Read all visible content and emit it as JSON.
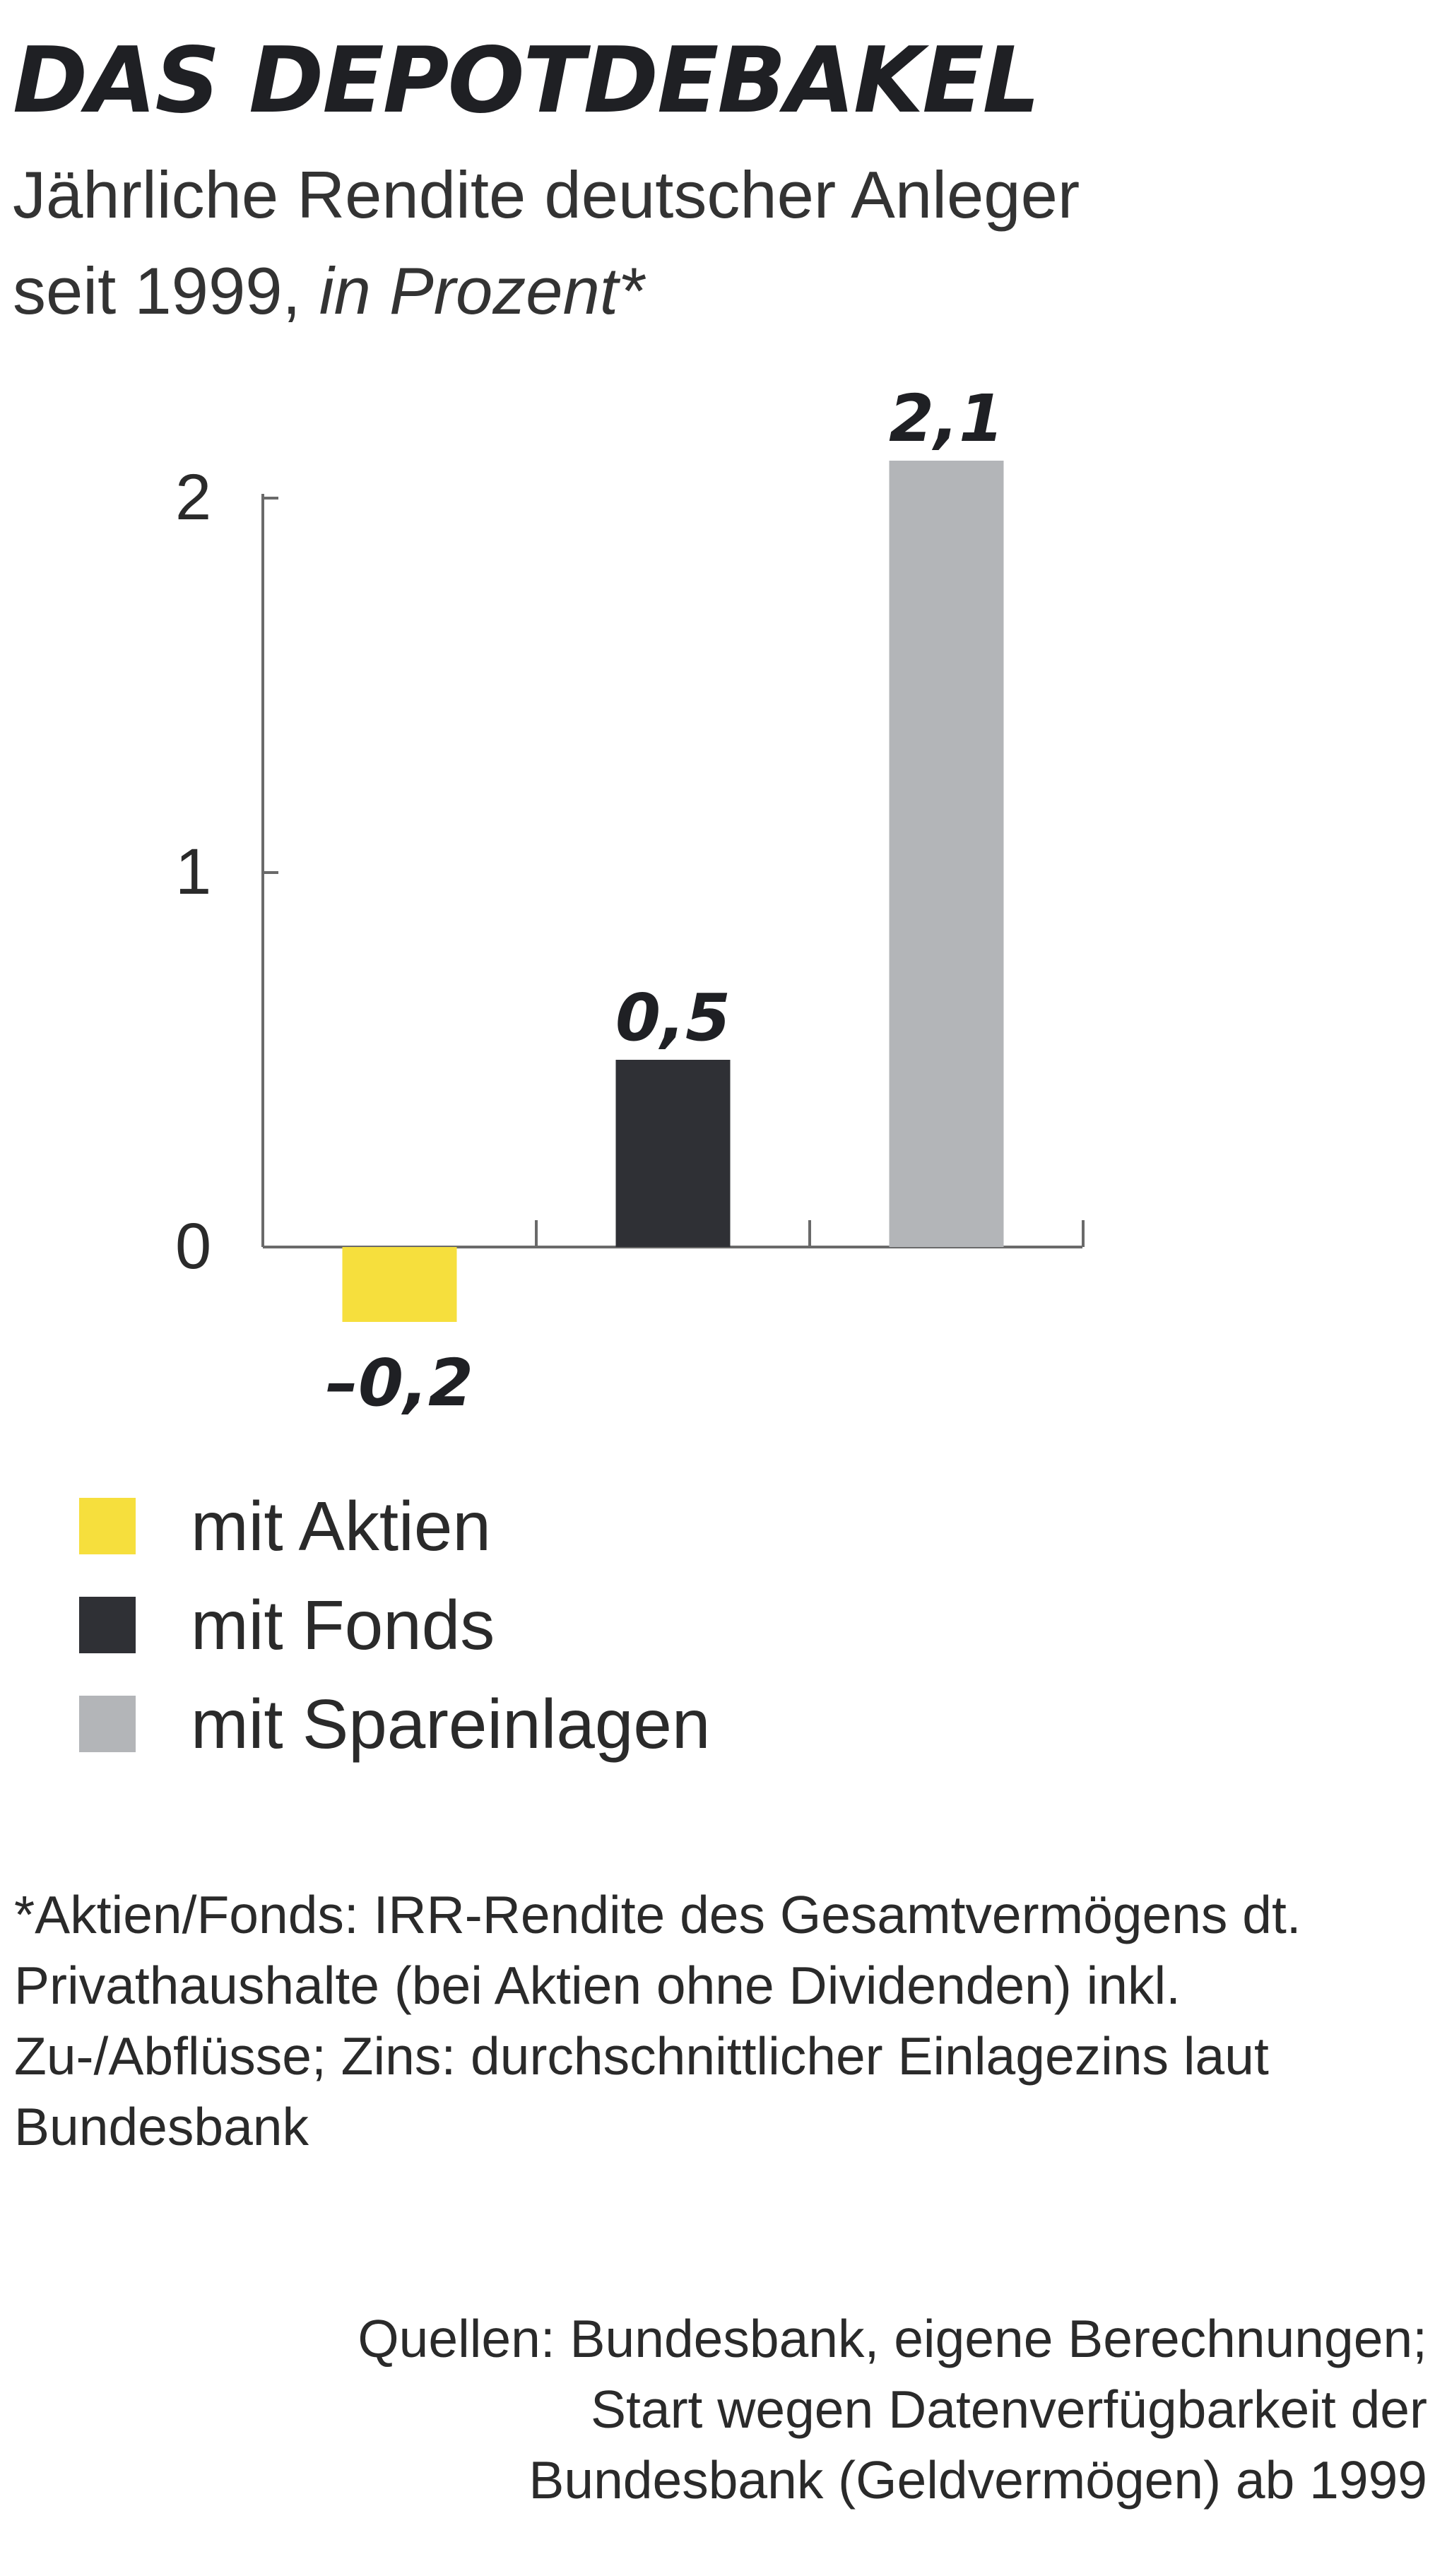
{
  "title": "DAS DEPOTDEBAKEL",
  "subtitle": {
    "line1": "Jährliche Rendite deutscher Anleger",
    "line2_text": "seit 1999,",
    "line2_italic": "in Prozent*"
  },
  "chart_data": {
    "type": "bar",
    "categories": [
      "mit Aktien",
      "mit Fonds",
      "mit Spareinlagen"
    ],
    "values": [
      -0.2,
      0.5,
      2.1
    ],
    "value_labels": [
      "–0,2",
      "0,5",
      "2,1"
    ],
    "colors": [
      "#f6df3d",
      "#2f3035",
      "#b3b5b8"
    ],
    "y_ticks": [
      0,
      1,
      2
    ],
    "y_tick_labels": [
      "0",
      "1",
      "2"
    ],
    "ylim": [
      -0.2,
      2.1
    ],
    "grid": false,
    "legend": "bottom-left"
  },
  "legend": {
    "items": [
      {
        "label": "mit Aktien",
        "color": "#f6df3d"
      },
      {
        "label": "mit Fonds",
        "color": "#2f3035"
      },
      {
        "label": "mit Spareinlagen",
        "color": "#b3b5b8"
      }
    ]
  },
  "footnote": "*Aktien/Fonds: IRR-Rendite des Gesamtvermögens dt. Privathaushalte (bei Aktien ohne Dividenden) inkl. Zu-/Abflüsse; Zins: durchschnittlicher Einlagezins laut Bundesbank",
  "sources": {
    "line1": "Quellen: Bundesbank, eigene Berechnungen;",
    "line2": "Start wegen Datenverfügbarkeit der",
    "line3": "Bundesbank (Geldvermögen) ab 1999"
  }
}
